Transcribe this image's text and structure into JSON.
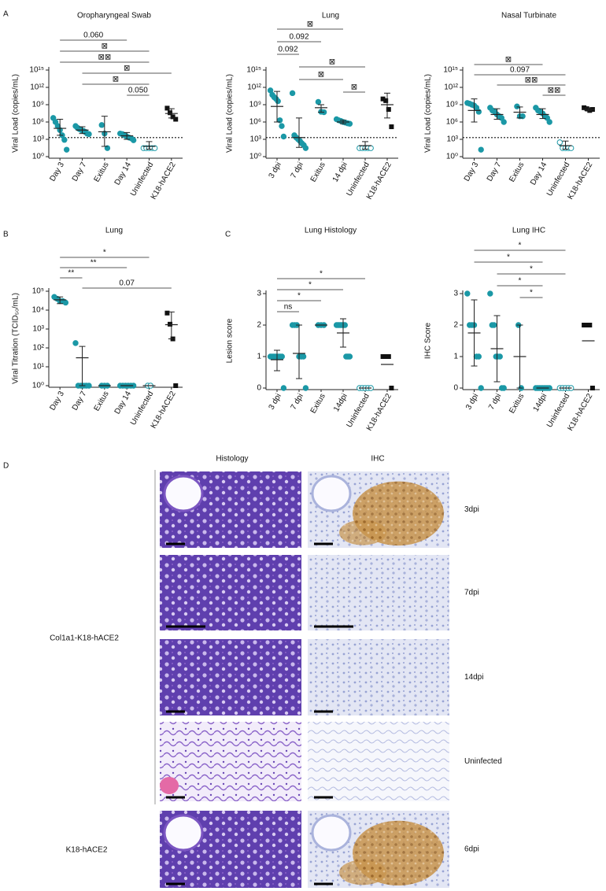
{
  "panel_labels": [
    "A",
    "B",
    "C",
    "D"
  ],
  "chart_data": [
    {
      "type": "dot",
      "title": "Oropharyngeal Swab",
      "y_label": "Viral Load (copies/mL)",
      "log": true,
      "categories": [
        "Day 3",
        "Day 7",
        "Exitus",
        "Day 14",
        "Uninfected",
        "K18-hACE2"
      ],
      "colors": [
        "#1b98a6",
        "#1b98a6",
        "#1b98a6",
        "#1b98a6",
        "#1b98a6",
        "#111111"
      ],
      "markers": [
        "circle",
        "circle",
        "circle",
        "circle",
        "open-circle",
        "square"
      ],
      "points": [
        [
          5000000.0,
          1000000.0,
          200000.0,
          40000.0,
          5000.0,
          800,
          16
        ],
        [
          200000.0,
          100000.0,
          60000.0,
          40000.0,
          30000.0,
          20000.0,
          10000.0,
          8000.0
        ],
        [
          300000.0,
          10000.0,
          30
        ],
        [
          10000.0,
          8000.0,
          5000.0,
          3000.0,
          2000.0,
          1500,
          700
        ],
        [
          30,
          30,
          30,
          30,
          30
        ],
        [
          250000000.0,
          40000000.0,
          8000000.0,
          3000000.0
        ]
      ],
      "means": [
        80000.0,
        40000.0,
        20000.0,
        4000.0,
        60,
        30000000.0
      ],
      "lows": [
        5000.0,
        10000.0,
        60,
        1000.0,
        20,
        5000000.0
      ],
      "highs": [
        3000000.0,
        150000.0,
        10000000.0,
        15000.0,
        400,
        200000000.0
      ],
      "lod": 2000,
      "ylim": [
        1,
        1000000000000000.0
      ],
      "yticks": [
        {
          "value": 1,
          "label": "10⁰"
        },
        {
          "value": 1000,
          "label": "10³"
        },
        {
          "value": 1000000.0,
          "label": "10⁶"
        },
        {
          "value": 1000000000.0,
          "label": "10⁹"
        },
        {
          "value": 1000000000000.0,
          "label": "10¹²"
        },
        {
          "value": 1000000000000000.0,
          "label": "10¹⁵"
        }
      ],
      "brackets": [
        {
          "from": "Day 3",
          "to": "Day 14",
          "label": "0.060"
        },
        {
          "from": "Day 3",
          "to": "Uninfected",
          "label": "⊠"
        },
        {
          "from": "Day 3",
          "to": "Uninfected",
          "label": "⊠⊠"
        },
        {
          "from": "Day 7",
          "to": "K18-hACE2",
          "label": "⊠"
        },
        {
          "from": "Day 7",
          "to": "Uninfected",
          "label": "⊠"
        },
        {
          "from": "Day 14",
          "to": "Uninfected",
          "label": "0.050"
        }
      ]
    },
    {
      "type": "dot",
      "title": "Lung",
      "y_label": "Viral Load (copies/mL)",
      "log": true,
      "categories": [
        "3 dpi",
        "7 dpi",
        "Exitus",
        "14 dpi",
        "Uninfected",
        "K18-hACE2"
      ],
      "colors": [
        "#1b98a6",
        "#1b98a6",
        "#1b98a6",
        "#1b98a6",
        "#1b98a6",
        "#111111"
      ],
      "markers": [
        "circle",
        "circle",
        "circle",
        "circle",
        "open-circle",
        "square"
      ],
      "points": [
        [
          300000000000.0,
          50000000000.0,
          20000000000.0,
          10000000000.0,
          4000000000.0,
          2000000.0,
          200000.0,
          3000.0
        ],
        [
          100000000000.0,
          5000.0,
          2000.0,
          1000.0,
          500,
          200,
          100,
          30
        ],
        [
          3000000000.0,
          60000000.0,
          50000000.0
        ],
        [
          3000000.0,
          2000000.0,
          1500000.0,
          1000000.0,
          800000.0,
          600000.0,
          500000.0
        ],
        [
          30,
          30,
          30,
          30,
          30
        ],
        [
          10000000000.0,
          5000000000.0,
          150000000.0,
          150000.0
        ]
      ],
      "means": [
        500000000.0,
        2000.0,
        300000000.0,
        1000000.0,
        80,
        1000000000.0
      ],
      "lows": [
        1000000.0,
        40,
        50000000.0,
        500000.0,
        20,
        5000000.0
      ],
      "highs": [
        200000000000.0,
        5000000.0,
        1000000000.0,
        2000000.0,
        400,
        100000000000.0
      ],
      "lod": 2000,
      "ylim": [
        1,
        1000000000000000.0
      ],
      "yticks": [
        {
          "value": 1,
          "label": "10⁰"
        },
        {
          "value": 1000,
          "label": "10³"
        },
        {
          "value": 1000000.0,
          "label": "10⁶"
        },
        {
          "value": 1000000000.0,
          "label": "10⁹"
        },
        {
          "value": 1000000000000.0,
          "label": "10¹²"
        },
        {
          "value": 1000000000000000.0,
          "label": "10¹⁵"
        }
      ],
      "brackets": [
        {
          "from": "3 dpi",
          "to": "14 dpi",
          "label": "⊠"
        },
        {
          "from": "3 dpi",
          "to": "Exitus",
          "label": "0.092"
        },
        {
          "from": "3 dpi",
          "to": "7 dpi",
          "label": "0.092"
        },
        {
          "from": "7 dpi",
          "to": "Uninfected",
          "label": "⊠"
        },
        {
          "from": "7 dpi",
          "to": "14 dpi",
          "label": "⊠"
        },
        {
          "from": "14 dpi",
          "to": "Uninfected",
          "label": "⊠"
        }
      ]
    },
    {
      "type": "dot",
      "title": "Nasal Turbinate",
      "y_label": "Viral Load (copies/mL)",
      "log": true,
      "categories": [
        "Day 3",
        "Day 7",
        "Exitus",
        "Day 14",
        "Uninfected",
        "K18-hACE2"
      ],
      "colors": [
        "#1b98a6",
        "#1b98a6",
        "#1b98a6",
        "#1b98a6",
        "#1b98a6",
        "#111111"
      ],
      "markers": [
        "circle",
        "circle",
        "circle",
        "circle",
        "open-circle",
        "square"
      ],
      "points": [
        [
          2000000000.0,
          1500000000.0,
          1000000000.0,
          700000000.0,
          300000000.0,
          60000000.0,
          16
        ],
        [
          300000000.0,
          100000000.0,
          60000000.0,
          20000000.0,
          10000000.0,
          5000000.0,
          1000000.0
        ],
        [
          500000000.0,
          10000000.0,
          10000000.0
        ],
        [
          300000000.0,
          100000000.0,
          60000000.0,
          30000000.0,
          10000000.0,
          5000000.0,
          1000000.0
        ],
        [
          300,
          30,
          30,
          30,
          30
        ],
        [
          300000000.0,
          200000000.0,
          100000000.0,
          150000000.0
        ]
      ],
      "means": [
        100000000.0,
        20000000.0,
        50000000.0,
        20000000.0,
        80,
        150000000.0
      ],
      "lows": [
        1000000.0,
        3000000.0,
        5000000.0,
        4000000.0,
        20,
        80000000.0
      ],
      "highs": [
        10000000000.0,
        200000000.0,
        400000000.0,
        200000000.0,
        500,
        300000000.0
      ],
      "lod": 2000,
      "ylim": [
        1,
        1000000000000000.0
      ],
      "yticks": [
        {
          "value": 1,
          "label": "10⁰"
        },
        {
          "value": 1000,
          "label": "10³"
        },
        {
          "value": 1000000.0,
          "label": "10⁶"
        },
        {
          "value": 1000000000.0,
          "label": "10⁹"
        },
        {
          "value": 1000000000000.0,
          "label": "10¹²"
        },
        {
          "value": 1000000000000000.0,
          "label": "10¹⁵"
        }
      ],
      "brackets": [
        {
          "from": "Day 3",
          "to": "Day 14",
          "label": "⊠"
        },
        {
          "from": "Day 3",
          "to": "Uninfected",
          "label": "0.097"
        },
        {
          "from": "Day 7",
          "to": "Uninfected",
          "label": "⊠⊠"
        },
        {
          "from": "Day 14",
          "to": "Uninfected",
          "label": "⊠⊠"
        }
      ]
    },
    {
      "type": "dot",
      "title": "Lung",
      "y_label": "Viral Titration (TCID₅₀/mL)",
      "log": true,
      "categories": [
        "Day 3",
        "Day 7",
        "Exitus",
        "Day 14",
        "Uninfected",
        "K18-hACE2"
      ],
      "colors": [
        "#1b98a6",
        "#1b98a6",
        "#1b98a6",
        "#1b98a6",
        "#1b98a6",
        "#111111"
      ],
      "markers": [
        "circle",
        "circle",
        "circle",
        "circle",
        "open-circle",
        "square"
      ],
      "points": [
        [
          50000.0,
          40000.0,
          30000.0,
          30000.0,
          25000.0
        ],
        [
          180,
          1,
          1,
          1,
          1,
          1
        ],
        [
          1,
          1,
          1
        ],
        [
          1,
          1,
          1,
          1,
          1,
          1
        ],
        [
          1,
          1
        ],
        [
          7000,
          1800,
          300,
          1
        ]
      ],
      "means": [
        35000.0,
        30,
        1,
        1,
        1,
        1700
      ],
      "lows": [
        22000.0,
        1,
        null,
        null,
        null,
        300
      ],
      "highs": [
        50000.0,
        120,
        null,
        null,
        null,
        8000
      ],
      "ylim": [
        1,
        100000
      ],
      "yticks": [
        {
          "value": 1,
          "label": "10⁰"
        },
        {
          "value": 10,
          "label": "10¹"
        },
        {
          "value": 100,
          "label": "10²"
        },
        {
          "value": 1000,
          "label": "10³"
        },
        {
          "value": 10000,
          "label": "10⁴"
        },
        {
          "value": 100000,
          "label": "10⁵"
        }
      ],
      "brackets": [
        {
          "from": "Day 3",
          "to": "Uninfected",
          "label": "*"
        },
        {
          "from": "Day 3",
          "to": "Day 14",
          "label": "**"
        },
        {
          "from": "Day 3",
          "to": "Day 7",
          "label": "**"
        },
        {
          "from": "Day 7",
          "to": "K18-hACE2",
          "label": "0.07"
        }
      ]
    },
    {
      "type": "dot",
      "title": "Lung Histology",
      "y_label": "Lesion score",
      "log": false,
      "categories": [
        "3 dpi",
        "7 dpi",
        "Exitus",
        "14dpi",
        "Uninfected",
        "K18-hACE2"
      ],
      "colors": [
        "#1b98a6",
        "#1b98a6",
        "#1b98a6",
        "#1b98a6",
        "#1b98a6",
        "#111111"
      ],
      "markers": [
        "circle",
        "circle",
        "circle",
        "circle",
        "open-circle",
        "square"
      ],
      "points": [
        [
          1,
          1,
          1,
          1,
          1,
          1,
          1,
          1,
          0
        ],
        [
          2,
          2,
          2,
          1,
          1,
          1,
          0
        ],
        [
          2,
          2,
          2
        ],
        [
          2,
          2,
          2,
          2,
          2,
          2,
          2,
          2,
          1,
          1,
          1,
          1
        ],
        [
          0,
          0,
          0,
          0,
          0
        ],
        [
          1,
          1,
          1,
          0
        ]
      ],
      "means": [
        0.9,
        1.1,
        2,
        1.75,
        0,
        0.75
      ],
      "lows": [
        0.55,
        0.3,
        null,
        1.3,
        null,
        null
      ],
      "highs": [
        1.2,
        2,
        null,
        2.2,
        null,
        null
      ],
      "ylim": [
        0,
        3
      ],
      "yticks": [
        0,
        1,
        2,
        3
      ],
      "brackets": [
        {
          "from": "3 dpi",
          "to": "Uninfected",
          "label": "*"
        },
        {
          "from": "3 dpi",
          "to": "14dpi",
          "label": "*"
        },
        {
          "from": "3 dpi",
          "to": "Exitus",
          "label": "*"
        },
        {
          "from": "3 dpi",
          "to": "7 dpi",
          "label": "ns"
        }
      ]
    },
    {
      "type": "dot",
      "title": "Lung IHC",
      "y_label": "IHC Score",
      "log": false,
      "categories": [
        "3 dpi",
        "7 dpi",
        "Exitus",
        "14dpi",
        "Uninfected",
        "K18-hACE2"
      ],
      "colors": [
        "#1b98a6",
        "#1b98a6",
        "#1b98a6",
        "#1b98a6",
        "#1b98a6",
        "#111111"
      ],
      "markers": [
        "circle",
        "circle",
        "circle",
        "circle",
        "open-circle",
        "square"
      ],
      "points": [
        [
          3,
          2,
          2,
          2,
          1,
          1,
          0
        ],
        [
          3,
          2,
          2,
          1,
          1,
          1,
          0,
          0
        ],
        [
          2,
          0
        ],
        [
          0,
          0,
          0,
          0,
          0,
          0,
          0,
          0,
          0
        ],
        [
          0,
          0,
          0,
          0,
          0
        ],
        [
          2,
          2,
          2,
          0
        ]
      ],
      "means": [
        1.75,
        1.25,
        1,
        0,
        0,
        1.5
      ],
      "lows": [
        0.7,
        0.2,
        0,
        null,
        null,
        null
      ],
      "highs": [
        2.8,
        2.3,
        2,
        null,
        null,
        null
      ],
      "ylim": [
        0,
        3
      ],
      "yticks": [
        0,
        1,
        2,
        3
      ],
      "brackets": [
        {
          "from": "3 dpi",
          "to": "Uninfected",
          "label": "*"
        },
        {
          "from": "3 dpi",
          "to": "14dpi",
          "label": "*"
        },
        {
          "from": "7 dpi",
          "to": "Uninfected",
          "label": "*"
        },
        {
          "from": "7 dpi",
          "to": "14dpi",
          "label": "*"
        },
        {
          "from": "Exitus",
          "to": "14dpi",
          "label": "*"
        }
      ]
    }
  ],
  "panel_d": {
    "columns": [
      "Histology",
      "IHC"
    ],
    "group_labels": [
      "Col1a1-K18-hACE2",
      "K18-hACE2"
    ],
    "rows": [
      "3dpi",
      "7dpi",
      "14dpi",
      "Uninfected",
      "6dpi"
    ]
  }
}
